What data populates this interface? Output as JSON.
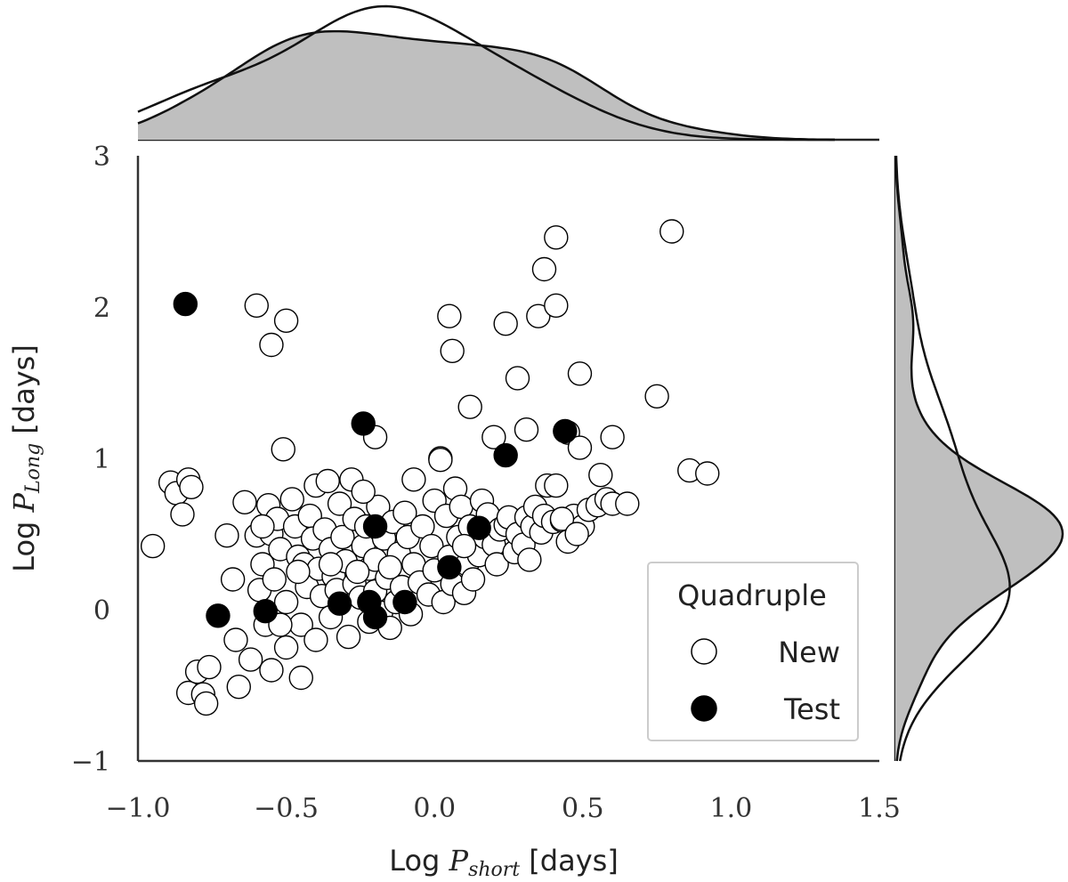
{
  "chart_data": {
    "type": "scatter",
    "xlabel": {
      "prefix": "Log ",
      "symbol": "P",
      "subscript": "short",
      "suffix": " [days]"
    },
    "ylabel": {
      "prefix": "Log ",
      "symbol": "P",
      "subscript": "Long",
      "suffix": " [days]"
    },
    "xlim": [
      -1.0,
      1.5
    ],
    "ylim": [
      -1,
      3
    ],
    "xticks": [
      -1.0,
      -0.5,
      0.0,
      0.5,
      1.0,
      1.5
    ],
    "xtick_labels": [
      "−1.0",
      "−0.5",
      "0.0",
      "0.5",
      "1.0",
      "1.5"
    ],
    "yticks": [
      -1,
      0,
      1,
      2,
      3
    ],
    "ytick_labels": [
      "−1",
      "0",
      "1",
      "2",
      "3"
    ],
    "grid": false,
    "legend": {
      "title": "Quadruple",
      "position": "bottom-right",
      "entries": [
        "New",
        "Test"
      ]
    },
    "marginals": {
      "top": "kde of x per series",
      "right": "kde of y per series"
    },
    "colors": {
      "new_fill": "#ffffff",
      "test_fill": "#000000",
      "marker_edge": "#000000",
      "kde_fill": "#bfbfbf",
      "axis": "#333333"
    },
    "series": [
      {
        "name": "New",
        "points": [
          [
            -0.95,
            0.42
          ],
          [
            -0.89,
            0.84
          ],
          [
            -0.87,
            0.77
          ],
          [
            -0.85,
            0.63
          ],
          [
            -0.83,
            0.86
          ],
          [
            -0.82,
            0.81
          ],
          [
            -0.83,
            -0.55
          ],
          [
            -0.8,
            -0.41
          ],
          [
            -0.76,
            -0.38
          ],
          [
            -0.78,
            -0.56
          ],
          [
            -0.77,
            -0.62
          ],
          [
            -0.7,
            0.49
          ],
          [
            -0.68,
            0.2
          ],
          [
            -0.67,
            -0.2
          ],
          [
            -0.66,
            -0.51
          ],
          [
            -0.64,
            0.71
          ],
          [
            -0.62,
            -0.33
          ],
          [
            -0.6,
            0.49
          ],
          [
            -0.58,
            0.3
          ],
          [
            -0.59,
            0.13
          ],
          [
            -0.57,
            -0.1
          ],
          [
            -0.56,
            0.69
          ],
          [
            -0.55,
            0.5
          ],
          [
            -0.55,
            -0.4
          ],
          [
            -0.54,
            0.2
          ],
          [
            -0.53,
            0.6
          ],
          [
            -0.52,
            0.4
          ],
          [
            -0.5,
            0.05
          ],
          [
            -0.5,
            -0.25
          ],
          [
            -0.48,
            0.73
          ],
          [
            -0.47,
            0.55
          ],
          [
            -0.46,
            0.35
          ],
          [
            -0.45,
            -0.1
          ],
          [
            -0.45,
            -0.45
          ],
          [
            -0.44,
            0.3
          ],
          [
            -0.43,
            0.15
          ],
          [
            -0.42,
            0.62
          ],
          [
            -0.41,
            0.47
          ],
          [
            -0.4,
            0.82
          ],
          [
            -0.4,
            -0.2
          ],
          [
            -0.39,
            0.27
          ],
          [
            -0.38,
            0.09
          ],
          [
            -0.37,
            0.53
          ],
          [
            -0.36,
            0.85
          ],
          [
            -0.35,
            0.4
          ],
          [
            -0.35,
            -0.05
          ],
          [
            -0.34,
            0.22
          ],
          [
            -0.33,
            0.13
          ],
          [
            -0.32,
            0.7
          ],
          [
            -0.31,
            0.48
          ],
          [
            -0.3,
            0.32
          ],
          [
            -0.29,
            -0.18
          ],
          [
            -0.28,
            0.86
          ],
          [
            -0.27,
            0.6
          ],
          [
            -0.27,
            0.17
          ],
          [
            -0.25,
            0.08
          ],
          [
            -0.24,
            0.42
          ],
          [
            -0.23,
            0.55
          ],
          [
            -0.22,
            -0.08
          ],
          [
            -0.22,
            0.27
          ],
          [
            -0.2,
            0.33
          ],
          [
            -0.2,
            0.12
          ],
          [
            -0.19,
            0.68
          ],
          [
            -0.18,
            -0.02
          ],
          [
            -0.17,
            0.47
          ],
          [
            -0.16,
            0.21
          ],
          [
            -0.15,
            -0.12
          ],
          [
            -0.14,
            0.58
          ],
          [
            -0.13,
            0.05
          ],
          [
            -0.12,
            0.37
          ],
          [
            -0.11,
            0.15
          ],
          [
            -0.1,
            0.64
          ],
          [
            -0.09,
            0.48
          ],
          [
            -0.08,
            -0.03
          ],
          [
            -0.07,
            0.3
          ],
          [
            -0.05,
            0.18
          ],
          [
            -0.04,
            0.55
          ],
          [
            -0.02,
            0.1
          ],
          [
            -0.01,
            0.42
          ],
          [
            0.0,
            0.72
          ],
          [
            0.0,
            0.26
          ],
          [
            0.02,
            1.0
          ],
          [
            0.03,
            0.05
          ],
          [
            0.04,
            0.62
          ],
          [
            0.05,
            0.35
          ],
          [
            0.06,
            0.17
          ],
          [
            0.07,
            0.8
          ],
          [
            0.08,
            0.48
          ],
          [
            0.09,
            0.68
          ],
          [
            0.1,
            0.11
          ],
          [
            0.11,
            0.3
          ],
          [
            0.12,
            0.55
          ],
          [
            0.13,
            0.2
          ],
          [
            0.15,
            0.36
          ],
          [
            0.16,
            0.72
          ],
          [
            0.17,
            0.48
          ],
          [
            0.18,
            0.63
          ],
          [
            0.2,
            0.43
          ],
          [
            0.21,
            0.3
          ],
          [
            0.22,
            0.53
          ],
          [
            0.24,
            0.56
          ],
          [
            0.25,
            0.61
          ],
          [
            0.27,
            0.38
          ],
          [
            0.28,
            0.5
          ],
          [
            0.3,
            0.43
          ],
          [
            0.31,
            0.61
          ],
          [
            0.32,
            0.33
          ],
          [
            0.33,
            0.55
          ],
          [
            0.34,
            0.68
          ],
          [
            0.36,
            0.51
          ],
          [
            0.37,
            0.62
          ],
          [
            0.38,
            0.82
          ],
          [
            0.4,
            0.58
          ],
          [
            0.41,
            0.82
          ],
          [
            0.43,
            0.59
          ],
          [
            0.45,
            0.45
          ],
          [
            0.47,
            0.62
          ],
          [
            0.5,
            0.55
          ],
          [
            0.52,
            0.66
          ],
          [
            0.55,
            0.69
          ],
          [
            0.56,
            0.89
          ],
          [
            0.58,
            0.73
          ],
          [
            0.6,
            0.7
          ],
          [
            0.65,
            0.7
          ],
          [
            -0.6,
            2.01
          ],
          [
            -0.55,
            1.75
          ],
          [
            -0.51,
            1.06
          ],
          [
            -0.5,
            1.91
          ],
          [
            -0.24,
            0.78
          ],
          [
            -0.2,
            1.14
          ],
          [
            -0.07,
            0.86
          ],
          [
            0.02,
            0.99
          ],
          [
            0.05,
            1.94
          ],
          [
            0.06,
            1.71
          ],
          [
            0.12,
            1.34
          ],
          [
            0.2,
            1.14
          ],
          [
            0.24,
            1.89
          ],
          [
            0.28,
            1.53
          ],
          [
            0.31,
            1.19
          ],
          [
            0.35,
            1.94
          ],
          [
            0.37,
            2.25
          ],
          [
            0.41,
            2.01
          ],
          [
            0.41,
            2.46
          ],
          [
            0.45,
            1.17
          ],
          [
            0.49,
            1.56
          ],
          [
            0.49,
            1.07
          ],
          [
            0.6,
            1.14
          ],
          [
            0.75,
            1.41
          ],
          [
            0.8,
            2.5
          ],
          [
            0.86,
            0.92
          ],
          [
            0.92,
            0.9
          ],
          [
            0.43,
            0.6
          ],
          [
            0.48,
            0.5
          ],
          [
            -0.58,
            0.55
          ],
          [
            -0.35,
            0.3
          ],
          [
            -0.26,
            0.25
          ],
          [
            -0.15,
            0.28
          ],
          [
            0.1,
            0.42
          ],
          [
            -0.46,
            0.25
          ],
          [
            -0.52,
            -0.1
          ]
        ]
      },
      {
        "name": "Test",
        "points": [
          [
            -0.84,
            2.02
          ],
          [
            -0.73,
            -0.04
          ],
          [
            -0.57,
            -0.01
          ],
          [
            -0.32,
            0.04
          ],
          [
            -0.24,
            1.23
          ],
          [
            -0.22,
            0.05
          ],
          [
            -0.2,
            0.55
          ],
          [
            -0.2,
            -0.05
          ],
          [
            -0.1,
            0.05
          ],
          [
            0.05,
            0.28
          ],
          [
            0.15,
            0.54
          ],
          [
            0.24,
            1.02
          ],
          [
            0.44,
            1.18
          ]
        ]
      }
    ]
  }
}
